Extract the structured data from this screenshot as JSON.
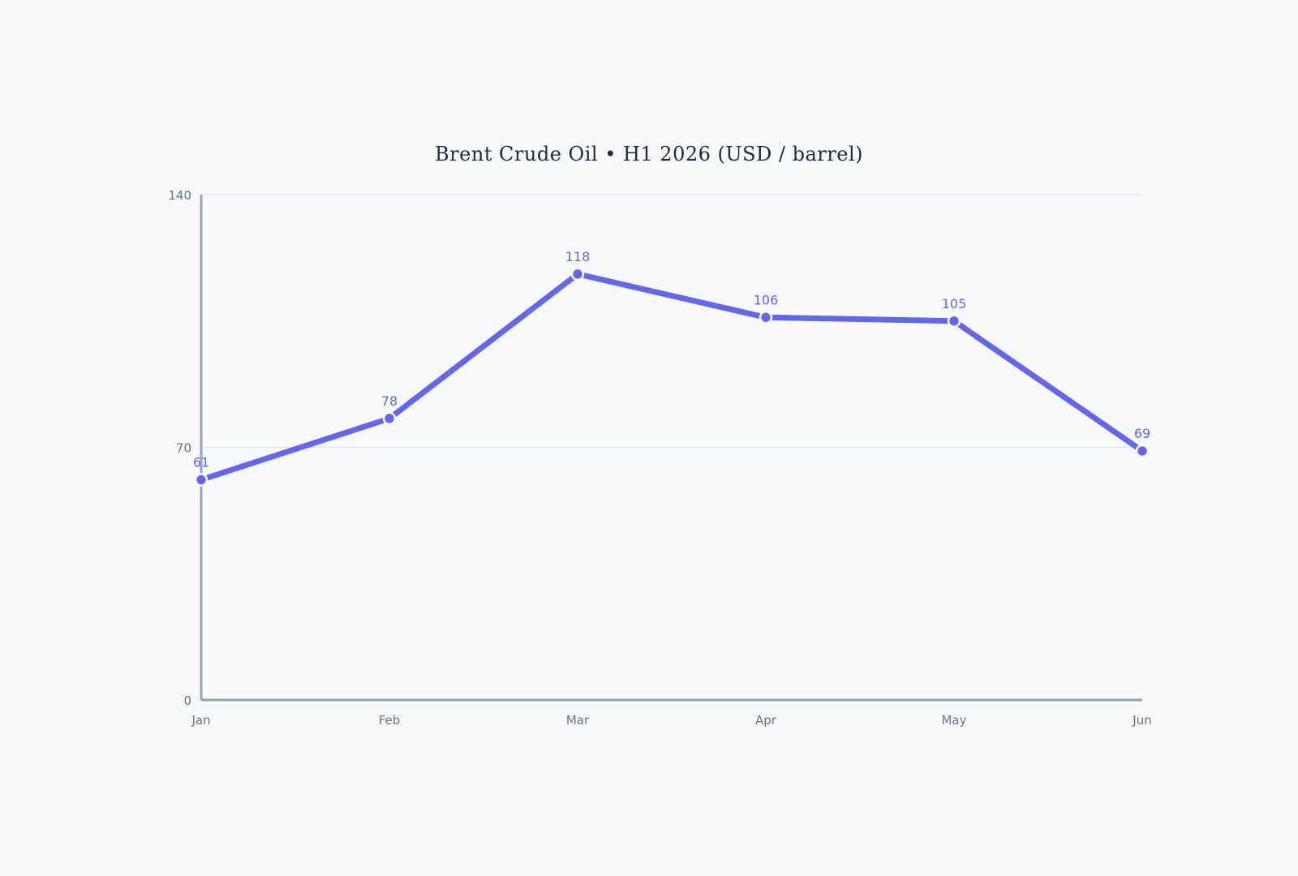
{
  "chart_data": {
    "type": "line",
    "title": "Brent Crude Oil • H1 2026 (USD / barrel)",
    "xlabel": "",
    "ylabel": "",
    "categories": [
      "Jan",
      "Feb",
      "Mar",
      "Apr",
      "May",
      "Jun"
    ],
    "series": [
      {
        "values": [
          61,
          78,
          118,
          106,
          105,
          69
        ],
        "data_labels": [
          "61",
          "78",
          "118",
          "106",
          "105",
          "69"
        ]
      }
    ],
    "ylim": [
      0,
      140
    ],
    "yticks": [
      0,
      70,
      140
    ],
    "ytick_labels": [
      "0",
      "70",
      "140"
    ],
    "grid": true,
    "legend": "none"
  },
  "colors": {
    "line": "#6366f1",
    "label": "#6366f1",
    "axis": "#94a3b8",
    "grid": "#e2e8f0",
    "background": "#f8fafc"
  }
}
